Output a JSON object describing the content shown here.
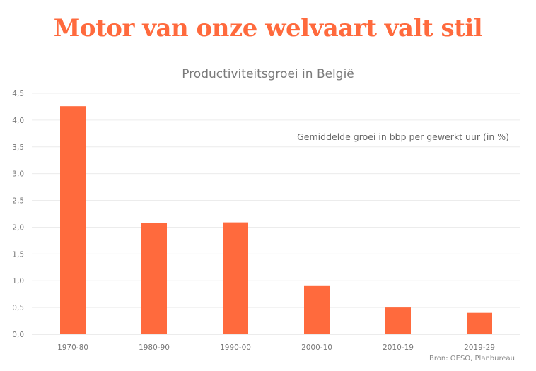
{
  "headline": "Motor van onze welvaart valt stil",
  "source": "Bron: OESO, Planbureau",
  "colors": {
    "accent": "#ff6a3d",
    "text": "#7a7a7a",
    "grid": "#ececec"
  },
  "chart_data": {
    "type": "bar",
    "title": "Productiviteitsgroei in België",
    "annotation": "Gemiddelde groei in bbp per gewerkt uur (in %)",
    "categories": [
      "1970-80",
      "1980-90",
      "1990-00",
      "2000-10",
      "2010-19",
      "2019-29"
    ],
    "values": [
      4.26,
      2.08,
      2.09,
      0.9,
      0.5,
      0.4
    ],
    "ylim": [
      0,
      4.5
    ],
    "yticks": [
      "0,0",
      "0,5",
      "1,0",
      "1,5",
      "2,0",
      "2,5",
      "3,0",
      "3,5",
      "4,0",
      "4,5"
    ],
    "grid": true,
    "bar_color": "#ff6a3d"
  }
}
